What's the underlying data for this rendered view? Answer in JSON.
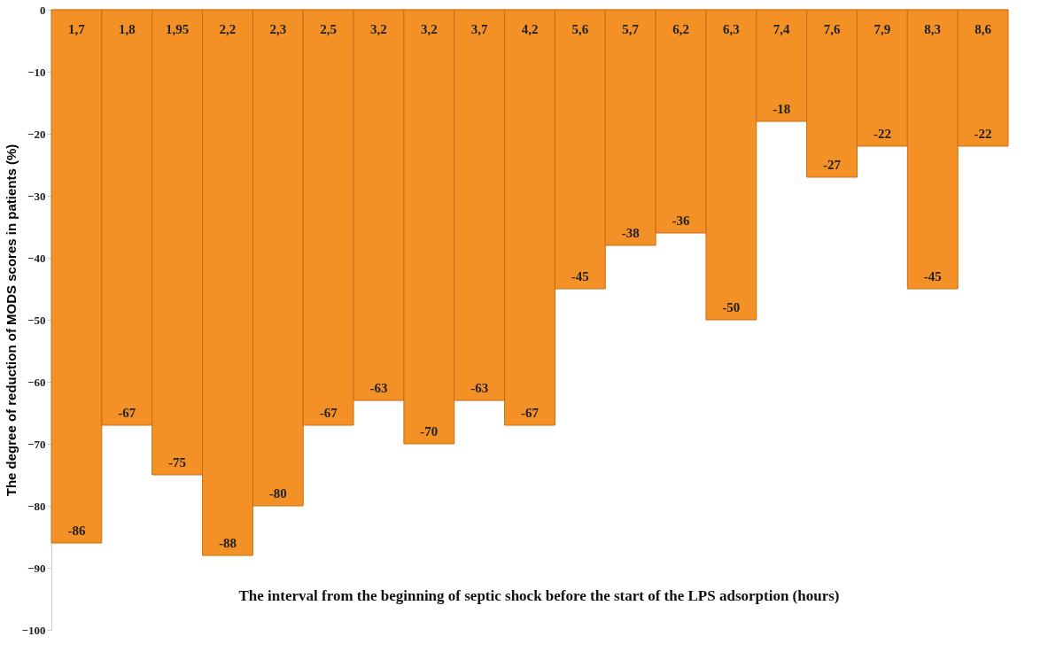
{
  "chart_data": {
    "type": "bar",
    "xlabel": "The interval from the beginning of septic shock before the start of the LPS adsorption (hours)",
    "ylabel": "The degree of reduction of MODS scores in patients (%)",
    "categories": [
      "1,7",
      "1,8",
      "1,95",
      "2,2",
      "2,3",
      "2,5",
      "3,2",
      "3,2",
      "3,7",
      "4,2",
      "5,6",
      "5,7",
      "6,2",
      "6,3",
      "7,4",
      "7,6",
      "7,9",
      "8,3",
      "8,6"
    ],
    "values": [
      -86,
      -67,
      -75,
      -88,
      -80,
      -67,
      -63,
      -70,
      -63,
      -67,
      -45,
      -38,
      -36,
      -50,
      -18,
      -27,
      -22,
      -45,
      -22
    ],
    "color": "#f39126",
    "ylim": [
      -100,
      0
    ],
    "yticks": [
      0,
      -10,
      -20,
      -30,
      -40,
      -50,
      -60,
      -70,
      -80,
      -90,
      -100
    ],
    "data_labels": true,
    "grid": false
  }
}
